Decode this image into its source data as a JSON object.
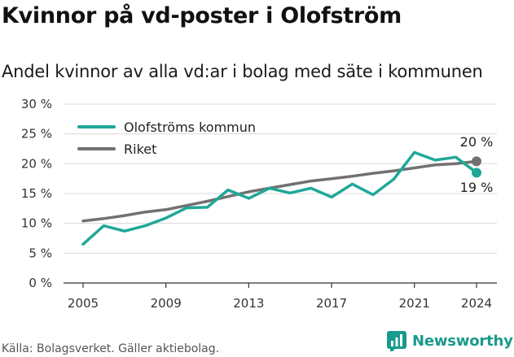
{
  "title": "Kvinnor på vd-poster i Olofström",
  "subtitle": "Andel kvinnor av alla vd:ar i bolag med säte i kommunen",
  "source": "Källa: Bolagsverket. Gäller aktiebolag.",
  "brand": "Newsworthy",
  "colors": {
    "local": "#1fa898",
    "national": "#717171",
    "grid": "#d9d9d9",
    "axis": "#333333"
  },
  "chart_data": {
    "type": "line",
    "title": "Kvinnor på vd-poster i Olofström",
    "subtitle": "Andel kvinnor av alla vd:ar i bolag med säte i kommunen",
    "xlabel": "",
    "ylabel": "",
    "ylim": [
      0,
      30
    ],
    "xlim": [
      2005,
      2024
    ],
    "yticks": [
      0,
      5,
      10,
      15,
      20,
      25,
      30
    ],
    "ytick_labels": [
      "0 %",
      "5 %",
      "10 %",
      "15 %",
      "20 %",
      "25 %",
      "30 %"
    ],
    "xticks": [
      2005,
      2009,
      2013,
      2017,
      2021,
      2024
    ],
    "xtick_labels": [
      "2005",
      "2009",
      "2013",
      "2017",
      "2021",
      "2024"
    ],
    "grid": true,
    "legend_position": "top-left",
    "series": [
      {
        "name": "Olofströms kommun",
        "x": [
          2005,
          2006,
          2007,
          2008,
          2009,
          2010,
          2011,
          2012,
          2013,
          2014,
          2015,
          2016,
          2017,
          2018,
          2019,
          2020,
          2021,
          2022,
          2023,
          2024
        ],
        "values": [
          6.5,
          9.6,
          8.7,
          9.6,
          10.9,
          12.6,
          12.7,
          15.6,
          14.2,
          15.9,
          15.1,
          15.9,
          14.4,
          16.6,
          14.8,
          17.4,
          21.9,
          20.6,
          21.1,
          18.5
        ],
        "end_label": "19 %"
      },
      {
        "name": "Riket",
        "x": [
          2005,
          2006,
          2007,
          2008,
          2009,
          2010,
          2011,
          2012,
          2013,
          2014,
          2015,
          2016,
          2017,
          2018,
          2019,
          2020,
          2021,
          2022,
          2023,
          2024
        ],
        "values": [
          10.4,
          10.8,
          11.3,
          11.9,
          12.3,
          13.0,
          13.7,
          14.5,
          15.3,
          15.9,
          16.5,
          17.1,
          17.5,
          17.9,
          18.4,
          18.8,
          19.3,
          19.8,
          20.0,
          20.4
        ],
        "end_label": "20 %"
      }
    ]
  }
}
